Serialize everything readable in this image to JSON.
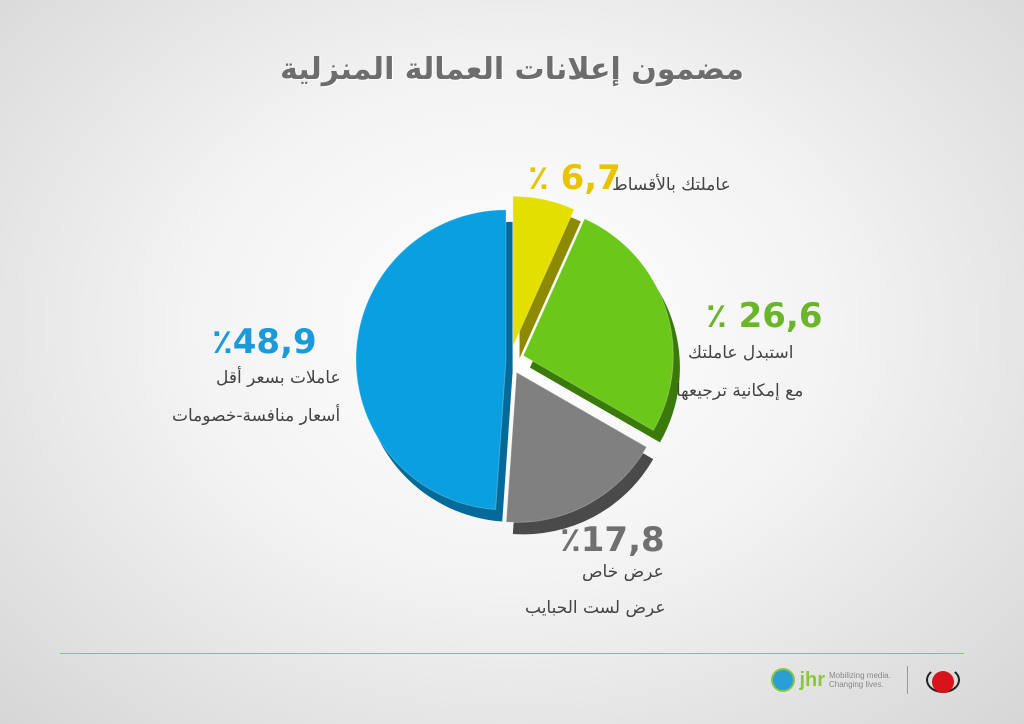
{
  "chart_data": {
    "type": "pie",
    "title": "مضمون إعلانات العمالة المنزلية",
    "slices": [
      {
        "value": 6.7,
        "percent_label": "٪ 6,7",
        "label_lines": [
          "عاملتك بالأقساط"
        ],
        "color": "#e3e000",
        "side": "#8c8a00"
      },
      {
        "value": 26.6,
        "percent_label": "٪ 26,6",
        "label_lines": [
          "استبدل عاملتك",
          "مع إمكانية ترجيعها"
        ],
        "color": "#6bc71a",
        "side": "#3a7a0a"
      },
      {
        "value": 17.8,
        "percent_label": "٪17,8",
        "label_lines": [
          "عرض خاص",
          "عرض لست الحبايب"
        ],
        "color": "#808080",
        "side": "#4a4a4a"
      },
      {
        "value": 48.9,
        "percent_label": "٪48,9",
        "label_lines": [
          "عاملات بسعر أقل",
          "أسعار منافسة-خصومات"
        ],
        "color": "#0a9fe0",
        "side": "#046a9a"
      }
    ],
    "percent_colors": [
      "#e8c400",
      "#6bb52a",
      "#707070",
      "#1a9ad8"
    ]
  },
  "footer": {
    "logo_text": "jhr",
    "logo_tagline": "Mobilizing media. Changing lives."
  }
}
